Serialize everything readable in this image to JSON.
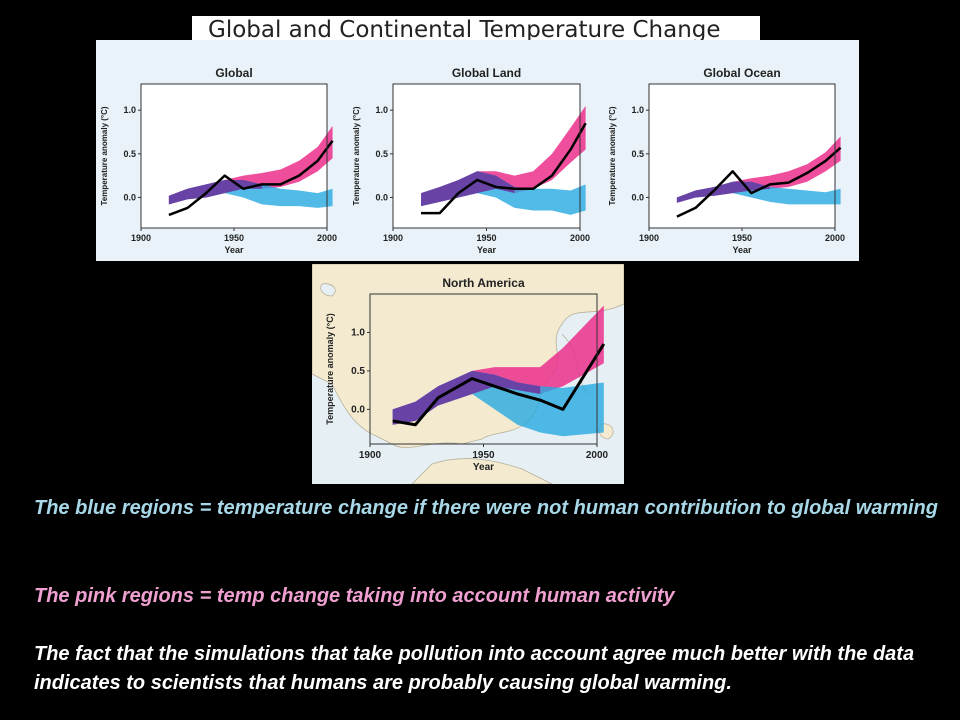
{
  "title": "Global and Continental Temperature Change",
  "colors": {
    "background": "#000000",
    "natural_band": "#27a9e1",
    "human_band": "#ec2f8c",
    "overlap_band": "#6a3aa0",
    "observed_line": "#000000",
    "blue_caption": "#a8d8e8",
    "pink_caption": "#f0a0d0",
    "white_caption": "#ffffff"
  },
  "chart_data": [
    {
      "type": "line",
      "title": "Global",
      "xlabel": "Year",
      "ylabel": "Temperature anomaly (°C)",
      "xlim": [
        1900,
        2000
      ],
      "ylim": [
        -0.35,
        1.3
      ],
      "x_ticks": [
        "1900",
        "1950",
        "2000"
      ],
      "y_ticks": [
        "0.0",
        "0.5",
        "1.0"
      ],
      "x": [
        1915,
        1925,
        1935,
        1945,
        1955,
        1965,
        1975,
        1985,
        1995,
        2003
      ],
      "series": [
        {
          "values": [
            -0.2,
            -0.12,
            0.05,
            0.25,
            0.1,
            0.15,
            0.15,
            0.25,
            0.42,
            0.65
          ]
        }
      ],
      "bands": [
        {
          "lower": [
            -0.08,
            -0.02,
            0.0,
            0.05,
            0.1,
            0.1,
            0.12,
            0.18,
            0.3,
            0.45
          ],
          "upper": [
            0.02,
            0.1,
            0.15,
            0.2,
            0.25,
            0.28,
            0.32,
            0.42,
            0.58,
            0.82
          ]
        },
        {
          "lower": [
            -0.08,
            -0.02,
            0.0,
            0.05,
            0.0,
            -0.08,
            -0.1,
            -0.1,
            -0.12,
            -0.1
          ],
          "upper": [
            0.02,
            0.1,
            0.15,
            0.2,
            0.2,
            0.15,
            0.1,
            0.08,
            0.05,
            0.1
          ]
        }
      ]
    },
    {
      "type": "line",
      "title": "Global Land",
      "xlabel": "Year",
      "ylabel": "Temperature anomaly (°C)",
      "xlim": [
        1900,
        2000
      ],
      "ylim": [
        -0.35,
        1.3
      ],
      "x_ticks": [
        "1900",
        "1950",
        "2000"
      ],
      "y_ticks": [
        "0.0",
        "0.5",
        "1.0"
      ],
      "x": [
        1915,
        1925,
        1935,
        1945,
        1955,
        1965,
        1975,
        1985,
        1995,
        2003
      ],
      "series": [
        {
          "values": [
            -0.18,
            -0.18,
            0.05,
            0.2,
            0.12,
            0.1,
            0.1,
            0.25,
            0.55,
            0.85
          ]
        }
      ],
      "bands": [
        {
          "lower": [
            -0.1,
            -0.05,
            0.0,
            0.05,
            0.1,
            0.05,
            0.1,
            0.2,
            0.4,
            0.55
          ],
          "upper": [
            0.05,
            0.12,
            0.2,
            0.3,
            0.3,
            0.25,
            0.3,
            0.5,
            0.8,
            1.05
          ]
        },
        {
          "lower": [
            -0.1,
            -0.05,
            0.0,
            0.05,
            0.0,
            -0.12,
            -0.15,
            -0.15,
            -0.2,
            -0.15
          ],
          "upper": [
            0.05,
            0.12,
            0.2,
            0.3,
            0.25,
            0.12,
            0.1,
            0.1,
            0.08,
            0.15
          ]
        }
      ]
    },
    {
      "type": "line",
      "title": "Global Ocean",
      "xlabel": "Year",
      "ylabel": "Temperature anomaly (°C)",
      "xlim": [
        1900,
        2000
      ],
      "ylim": [
        -0.35,
        1.3
      ],
      "x_ticks": [
        "1900",
        "1950",
        "2000"
      ],
      "y_ticks": [
        "0.0",
        "0.5",
        "1.0"
      ],
      "x": [
        1915,
        1925,
        1935,
        1945,
        1955,
        1965,
        1975,
        1985,
        1995,
        2003
      ],
      "series": [
        {
          "values": [
            -0.22,
            -0.12,
            0.08,
            0.3,
            0.05,
            0.15,
            0.17,
            0.28,
            0.42,
            0.57
          ]
        }
      ],
      "bands": [
        {
          "lower": [
            -0.06,
            0.0,
            0.02,
            0.05,
            0.08,
            0.1,
            0.12,
            0.18,
            0.3,
            0.42
          ],
          "upper": [
            0.0,
            0.08,
            0.12,
            0.18,
            0.22,
            0.25,
            0.3,
            0.38,
            0.52,
            0.7
          ]
        },
        {
          "lower": [
            -0.06,
            0.0,
            0.02,
            0.05,
            0.0,
            -0.05,
            -0.08,
            -0.08,
            -0.08,
            -0.08
          ],
          "upper": [
            0.0,
            0.08,
            0.12,
            0.18,
            0.18,
            0.12,
            0.1,
            0.08,
            0.06,
            0.1
          ]
        }
      ]
    },
    {
      "type": "line",
      "title": "North America",
      "xlabel": "Year",
      "ylabel": "Temperature anomaly (°C)",
      "xlim": [
        1900,
        2000
      ],
      "ylim": [
        -0.45,
        1.5
      ],
      "x_ticks": [
        "1900",
        "1950",
        "2000"
      ],
      "y_ticks": [
        "0.0",
        "0.5",
        "1.0"
      ],
      "x": [
        1910,
        1920,
        1930,
        1945,
        1955,
        1965,
        1975,
        1985,
        2003
      ],
      "series": [
        {
          "values": [
            -0.15,
            -0.2,
            0.15,
            0.4,
            0.3,
            0.2,
            0.12,
            0.0,
            0.85
          ]
        }
      ],
      "bands": [
        {
          "lower": [
            -0.2,
            -0.15,
            0.05,
            0.2,
            0.3,
            0.25,
            0.2,
            0.3,
            0.6
          ],
          "upper": [
            0.0,
            0.1,
            0.3,
            0.5,
            0.55,
            0.55,
            0.55,
            0.8,
            1.35
          ]
        },
        {
          "lower": [
            -0.2,
            -0.15,
            0.05,
            0.2,
            0.0,
            -0.2,
            -0.3,
            -0.35,
            -0.3
          ],
          "upper": [
            0.0,
            0.1,
            0.3,
            0.5,
            0.45,
            0.35,
            0.3,
            0.28,
            0.35
          ]
        }
      ]
    }
  ],
  "captions": {
    "blue": "The blue regions = temperature change if there were not human contribution to global warming",
    "pink": "The pink regions = temp change taking into account human activity",
    "conclusion": "The fact that the simulations that take pollution into account agree much better with the data indicates to scientists that humans are probably causing global warming."
  }
}
